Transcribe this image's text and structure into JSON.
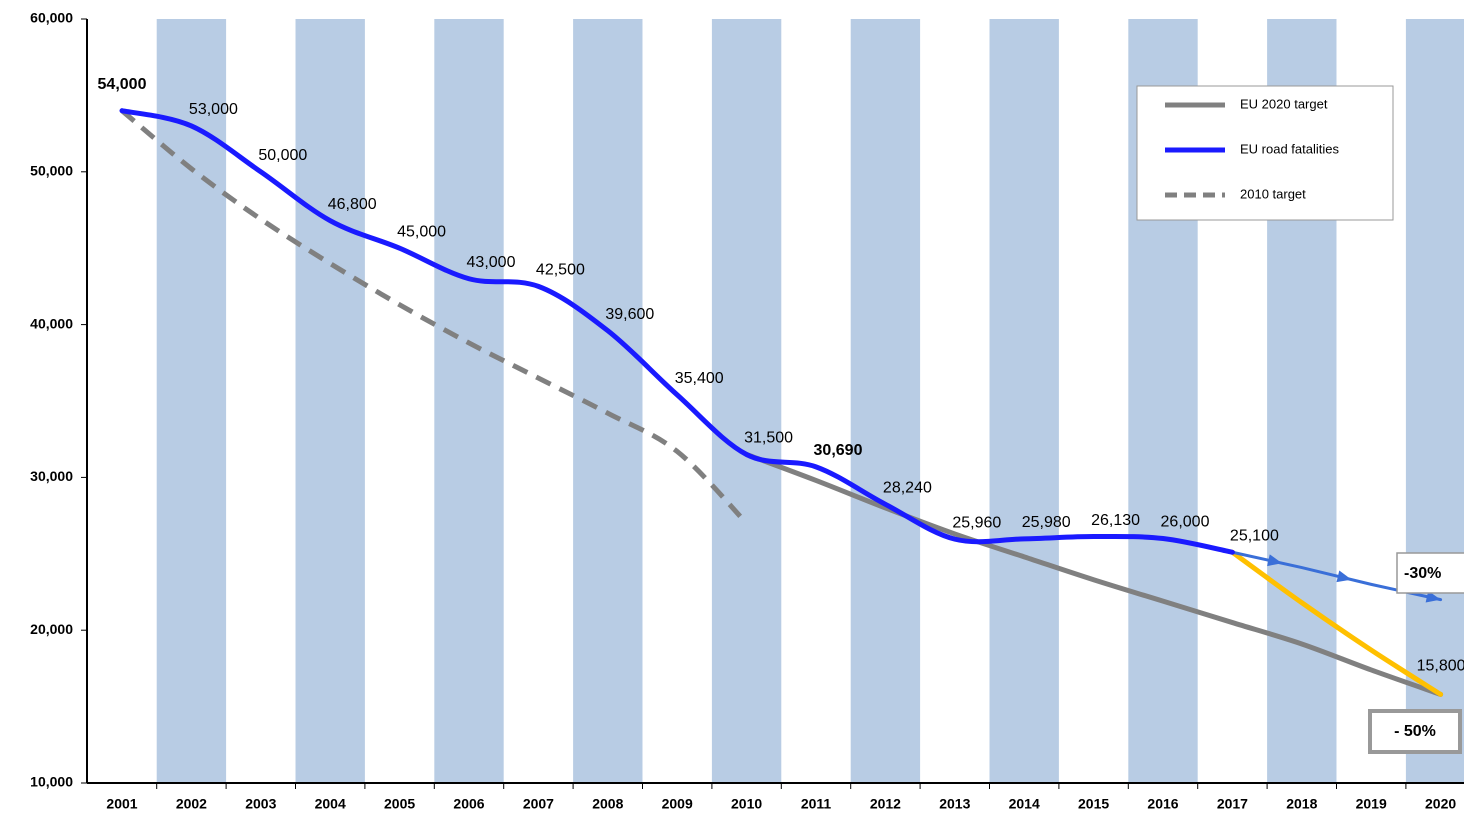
{
  "chart_data": {
    "type": "line",
    "categories": [
      "2001",
      "2002",
      "2003",
      "2004",
      "2005",
      "2006",
      "2007",
      "2008",
      "2009",
      "2010",
      "2011",
      "2012",
      "2013",
      "2014",
      "2015",
      "2016",
      "2017",
      "2018",
      "2019",
      "2020"
    ],
    "ylim": [
      10000,
      60000
    ],
    "yticks": [
      {
        "value": 10000,
        "label": "10,000"
      },
      {
        "value": 20000,
        "label": "20,000"
      },
      {
        "value": 30000,
        "label": "30,000"
      },
      {
        "value": 40000,
        "label": "40,000"
      },
      {
        "value": 50000,
        "label": "50,000"
      },
      {
        "value": 60000,
        "label": "60,000"
      }
    ],
    "band_color": "#b8cce4",
    "series": [
      {
        "name": "EU 2020  target",
        "color": "#808080",
        "style": "solid",
        "values": [
          null,
          null,
          null,
          null,
          null,
          null,
          null,
          null,
          null,
          31500,
          29800,
          28000,
          26300,
          24800,
          23300,
          21900,
          20500,
          19100,
          17400,
          15800
        ]
      },
      {
        "name": "EU road fatalities",
        "color": "#1a1aff",
        "style": "solid",
        "values": [
          54000,
          53000,
          50000,
          46800,
          45000,
          43000,
          42500,
          39600,
          35400,
          31500,
          30690,
          28240,
          25960,
          25980,
          26130,
          26000,
          25100,
          null,
          null,
          null
        ],
        "value_labels": [
          "54,000",
          "53,000",
          "50,000",
          "46,800",
          "45,000",
          "43,000",
          "42,500",
          "39,600",
          "35,400",
          "31,500",
          "30,690",
          "28,240",
          "25,960",
          "25,980",
          "26,130",
          "26,000",
          "25,100",
          null,
          null,
          null
        ]
      },
      {
        "name": "2010  target",
        "color": "#808080",
        "style": "dashed",
        "values": [
          54000,
          50200,
          46900,
          44000,
          41300,
          38800,
          36500,
          34200,
          31700,
          27000,
          null,
          null,
          null,
          null,
          null,
          null,
          null,
          null,
          null,
          null
        ]
      },
      {
        "color": "#ffc000",
        "style": "solid",
        "values": [
          null,
          null,
          null,
          null,
          null,
          null,
          null,
          null,
          null,
          null,
          null,
          null,
          null,
          null,
          null,
          null,
          25100,
          21800,
          18700,
          15800
        ],
        "end_label": "15,800"
      },
      {
        "color": "#3a6fd8",
        "style": "arrow",
        "values": [
          null,
          null,
          null,
          null,
          null,
          null,
          null,
          null,
          null,
          null,
          null,
          null,
          null,
          null,
          null,
          null,
          25100,
          24100,
          23000,
          22000
        ]
      }
    ],
    "annotations": [
      "-30%",
      "- 50%"
    ]
  }
}
